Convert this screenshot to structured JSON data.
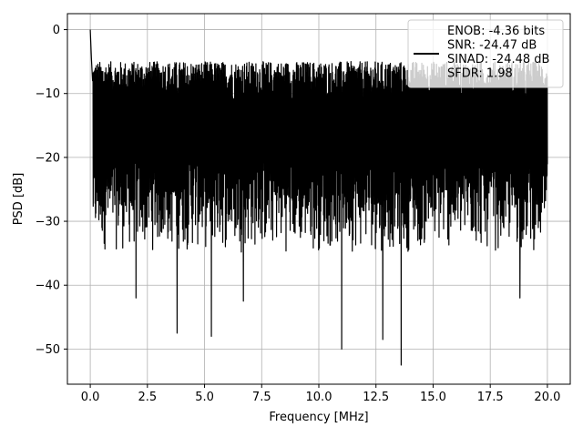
{
  "chart_data": {
    "type": "line",
    "title": "",
    "xlabel": "Frequency [MHz]",
    "ylabel": "PSD [dB]",
    "xlim": [
      -1.0,
      21.0
    ],
    "ylim": [
      -55.5,
      2.5
    ],
    "x_ticks": [
      0.0,
      2.5,
      5.0,
      7.5,
      10.0,
      12.5,
      15.0,
      17.5,
      20.0
    ],
    "x_tick_labels": [
      "0.0",
      "2.5",
      "5.0",
      "7.5",
      "10.0",
      "12.5",
      "15.0",
      "17.5",
      "20.0"
    ],
    "y_ticks": [
      0,
      -10,
      -20,
      -30,
      -40,
      -50
    ],
    "y_tick_labels": [
      "0",
      "−10",
      "−20",
      "−30",
      "−40",
      "−50"
    ],
    "grid": true,
    "legend_position": "top-right",
    "legend_entries": [
      "ENOB: -4.36 bits",
      "SNR: -24.47 dB",
      "SINAD: -24.48 dB",
      "SFDR: 1.98"
    ],
    "line_color": "#000000",
    "series": [
      {
        "x_range": [
          0.0,
          20.0
        ],
        "peak_points": [
          [
            0.0,
            0
          ],
          [
            0.05,
            -4.5
          ],
          [
            0.1,
            -8
          ]
        ],
        "noise_band_upper": [
          -12,
          -5
        ],
        "noise_band_lower": [
          -35,
          -20
        ],
        "notable_dips": [
          [
            2.0,
            -42
          ],
          [
            3.8,
            -47.5
          ],
          [
            5.3,
            -48
          ],
          [
            6.7,
            -42.5
          ],
          [
            11.0,
            -50
          ],
          [
            12.8,
            -48.5
          ],
          [
            13.6,
            -52.5
          ],
          [
            18.8,
            -42
          ]
        ]
      }
    ]
  }
}
